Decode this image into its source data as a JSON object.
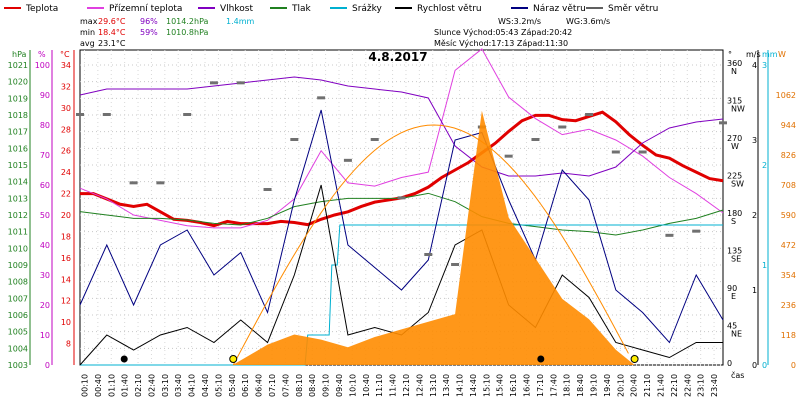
{
  "chart_data": {
    "type": "line",
    "title": "4.8.2017",
    "legend": [
      {
        "name": "Teplota",
        "color": "#e00000"
      },
      {
        "name": "Přízemní teplota",
        "color": "#e040e0"
      },
      {
        "name": "Vlhkost",
        "color": "#8000c0"
      },
      {
        "name": "Tlak",
        "color": "#208020"
      },
      {
        "name": "Srážky",
        "color": "#00b0d0"
      },
      {
        "name": "Rychlost větru",
        "color": "#000000"
      },
      {
        "name": "Náraz větru",
        "color": "#000080"
      },
      {
        "name": "Směr větru",
        "color": "#606060"
      }
    ],
    "stats": {
      "max_label": "max",
      "max_temp": "29.6°C",
      "max_hum": "96%",
      "max_press": "1014.2hPa",
      "rain": "1.4mm",
      "min_label": "min",
      "min_temp": "18.4°C",
      "min_hum": "59%",
      "min_press": "1010.8hPa",
      "avg_label": "avg",
      "avg_temp": "23.1°C",
      "ws": "WS:3.2m/s",
      "wg": "WG:3.6m/s",
      "sun": "Slunce Východ:05:43  Západ:20:42",
      "moon": "Měsíc  Východ:17:13  Západ:11:30"
    },
    "axes": {
      "hpa": {
        "label": "hPa",
        "ticks": [
          1003,
          1004,
          1005,
          1006,
          1007,
          1008,
          1009,
          1010,
          1011,
          1012,
          1013,
          1014,
          1015,
          1016,
          1017,
          1018,
          1019,
          1020,
          1021
        ]
      },
      "pct": {
        "label": "%",
        "ticks": [
          0,
          10,
          20,
          30,
          40,
          50,
          60,
          70,
          80,
          90,
          100
        ]
      },
      "temp": {
        "label": "°C",
        "ticks": [
          8,
          10,
          12,
          14,
          16,
          18,
          20,
          22,
          24,
          26,
          28,
          30,
          32,
          34
        ]
      },
      "dir": {
        "label": "°",
        "ticks": [
          "360 N",
          "315 NW",
          "270 W",
          "225 SW",
          "180 S",
          "135 SE",
          "90 E",
          "45 NE",
          "0"
        ]
      },
      "ms": {
        "label": "m/s",
        "ticks": [
          0,
          1,
          2,
          3,
          4
        ]
      },
      "mm": {
        "label": "mm",
        "ticks": [
          0,
          1,
          2,
          3
        ]
      },
      "w": {
        "label": "W",
        "ticks": [
          0,
          118,
          236,
          354,
          472,
          590,
          708,
          826,
          944,
          1062
        ]
      },
      "x_label": "čas",
      "x_ticks": [
        "00:10",
        "00:40",
        "01:10",
        "01:40",
        "02:10",
        "02:40",
        "03:10",
        "03:40",
        "04:10",
        "04:40",
        "05:10",
        "05:40",
        "06:10",
        "06:40",
        "07:10",
        "07:40",
        "08:10",
        "08:40",
        "09:10",
        "09:40",
        "10:10",
        "10:40",
        "11:10",
        "11:40",
        "12:10",
        "12:40",
        "13:10",
        "13:40",
        "14:10",
        "14:40",
        "15:10",
        "15:40",
        "16:10",
        "16:40",
        "17:10",
        "17:40",
        "18:10",
        "18:40",
        "19:10",
        "19:40",
        "20:10",
        "20:40",
        "21:10",
        "21:40",
        "22:10",
        "22:40",
        "23:10",
        "23:40"
      ]
    },
    "series": [
      {
        "name": "Teplota",
        "unit": "°C",
        "x_hours": [
          0,
          0.5,
          1,
          1.5,
          2,
          2.5,
          3,
          3.5,
          4,
          4.5,
          5,
          5.5,
          6,
          6.5,
          7,
          7.5,
          8,
          8.5,
          9,
          9.5,
          10,
          10.5,
          11,
          11.5,
          12,
          12.5,
          13,
          13.5,
          14,
          14.5,
          15,
          15.5,
          16,
          16.5,
          17,
          17.5,
          18,
          18.5,
          19,
          19.5,
          20,
          20.5,
          21,
          21.5,
          22,
          22.5,
          23,
          23.5,
          24
        ],
        "values": [
          22,
          22,
          21.5,
          21,
          20.8,
          21,
          20.3,
          19.6,
          19.5,
          19.3,
          19,
          19.4,
          19.2,
          19.2,
          19.2,
          19.4,
          19.3,
          19.1,
          19.6,
          20,
          20.3,
          20.8,
          21.2,
          21.4,
          21.6,
          22,
          22.6,
          23.5,
          24.2,
          24.9,
          25.8,
          26.7,
          27.8,
          28.8,
          29.3,
          29.3,
          28.9,
          28.8,
          29.2,
          29.6,
          28.7,
          27.5,
          26.5,
          25.6,
          25.3,
          24.6,
          24,
          23.4,
          23.2
        ]
      },
      {
        "name": "Přízemní teplota",
        "unit": "°C",
        "x_hours": [
          0,
          1,
          2,
          3,
          4,
          5,
          6,
          7,
          8,
          9,
          10,
          11,
          12,
          13,
          14,
          15,
          16,
          17,
          18,
          19,
          20,
          21,
          22,
          23,
          24
        ],
        "values": [
          22.5,
          21.5,
          20,
          19.5,
          19,
          18.8,
          18.8,
          19.5,
          21.5,
          26,
          23,
          22.7,
          23.5,
          24,
          33.5,
          35.5,
          31,
          29,
          27.5,
          28,
          27,
          25.5,
          23.5,
          22,
          20.2
        ]
      },
      {
        "name": "Vlhkost",
        "unit": "%",
        "x_hours": [
          0,
          1,
          2,
          3,
          4,
          5,
          6,
          7,
          8,
          9,
          10,
          11,
          12,
          13,
          14,
          15,
          16,
          17,
          18,
          19,
          20,
          21,
          22,
          23,
          24
        ],
        "values": [
          90,
          92,
          92,
          92,
          92,
          93,
          94,
          95,
          96,
          95,
          93,
          92,
          91,
          89,
          73,
          66,
          63,
          63,
          64,
          63,
          66,
          74,
          79,
          81,
          82
        ]
      },
      {
        "name": "Tlak",
        "unit": "hPa",
        "x_hours": [
          0,
          1,
          2,
          3,
          4,
          5,
          6,
          7,
          8,
          9,
          10,
          11,
          12,
          13,
          14,
          15,
          16,
          17,
          18,
          19,
          20,
          21,
          22,
          23,
          24
        ],
        "values": [
          1012.2,
          1012,
          1011.8,
          1011.8,
          1011.7,
          1011.5,
          1011.4,
          1011.8,
          1012.5,
          1012.8,
          1013,
          1013,
          1013,
          1013.3,
          1012.8,
          1011.9,
          1011.5,
          1011.3,
          1011.1,
          1011,
          1010.8,
          1011.1,
          1011.5,
          1011.8,
          1012.3
        ]
      },
      {
        "name": "Srážky",
        "unit": "mm",
        "x_hours": [
          0,
          8.4,
          8.5,
          9.3,
          9.4,
          9.6,
          9.7,
          24
        ],
        "values": [
          0,
          0,
          0.3,
          0.3,
          1.0,
          1.0,
          1.4,
          1.4
        ]
      },
      {
        "name": "Rychlost větru",
        "unit": "m/s",
        "x_hours": [
          0,
          1,
          2,
          3,
          4,
          5,
          6,
          7,
          8,
          9,
          10,
          11,
          12,
          13,
          14,
          15,
          16,
          17,
          18,
          19,
          20,
          21,
          22,
          23,
          24
        ],
        "values": [
          0,
          0.4,
          0.2,
          0.4,
          0.5,
          0.3,
          0.6,
          0.3,
          1.2,
          2.4,
          0.4,
          0.5,
          0.4,
          0.7,
          1.6,
          1.8,
          0.8,
          0.5,
          1.2,
          0.9,
          0.3,
          0.2,
          0.1,
          0.3,
          0.3
        ]
      },
      {
        "name": "Náraz větru",
        "unit": "m/s",
        "x_hours": [
          0,
          1,
          2,
          3,
          4,
          5,
          6,
          7,
          8,
          9,
          10,
          11,
          12,
          13,
          14,
          15,
          16,
          17,
          18,
          19,
          20,
          21,
          22,
          23,
          24
        ],
        "values": [
          0.8,
          1.6,
          0.8,
          1.6,
          1.8,
          1.2,
          1.5,
          0.7,
          2.2,
          3.4,
          1.6,
          1.3,
          1.0,
          1.4,
          3.0,
          3.1,
          2.2,
          1.4,
          2.6,
          2.2,
          1.0,
          0.7,
          0.3,
          1.2,
          0.6
        ]
      },
      {
        "name": "Směr větru",
        "unit": "°",
        "x_hours": [
          0,
          1,
          2,
          3,
          4,
          5,
          6,
          7,
          8,
          9,
          10,
          11,
          12,
          13,
          14,
          15,
          16,
          17,
          18,
          19,
          20,
          21,
          22,
          23,
          24
        ],
        "values": [
          300,
          300,
          218,
          218,
          300,
          338,
          338,
          210,
          270,
          320,
          245,
          270,
          200,
          132,
          120,
          285,
          250,
          270,
          285,
          300,
          255,
          255,
          155,
          160,
          290
        ]
      },
      {
        "name": "Solar",
        "unit": "W",
        "x_hours": [
          0,
          5.7,
          7,
          8,
          9,
          10,
          11,
          12,
          13,
          14,
          15,
          16,
          17,
          18,
          19,
          20,
          20.7,
          24
        ],
        "values": [
          0,
          0,
          80,
          120,
          100,
          70,
          110,
          140,
          170,
          200,
          1000,
          580,
          420,
          260,
          180,
          60,
          0,
          0
        ]
      }
    ]
  }
}
